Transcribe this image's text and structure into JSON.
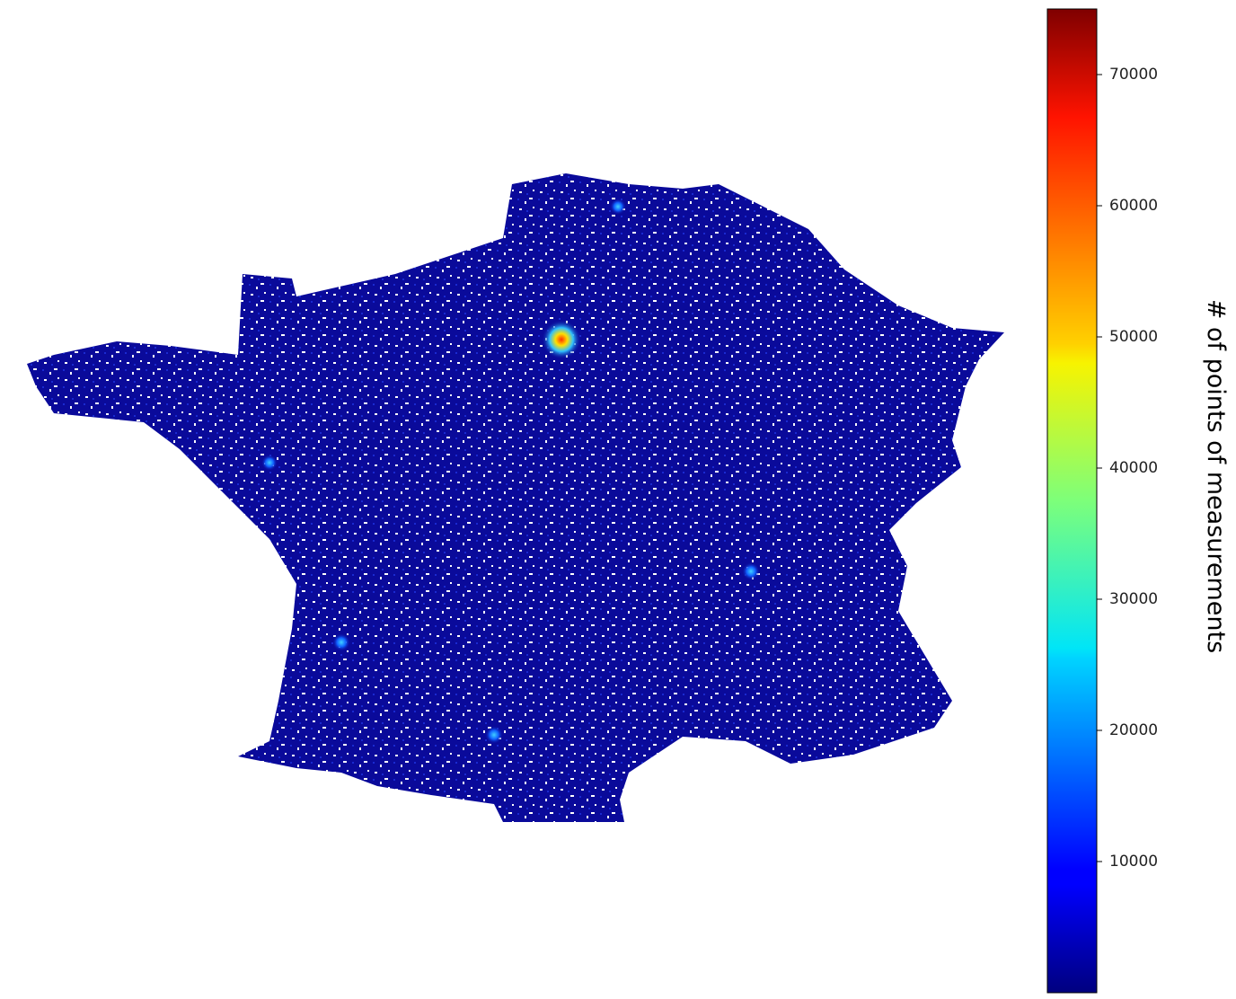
{
  "chart_data": {
    "type": "heatmap",
    "colorbar": {
      "label": "# of points of measurements",
      "colormap": "jet",
      "lim": [
        0,
        75000
      ],
      "ticks": [
        10000,
        20000,
        30000,
        40000,
        50000,
        60000,
        70000
      ]
    }
  }
}
